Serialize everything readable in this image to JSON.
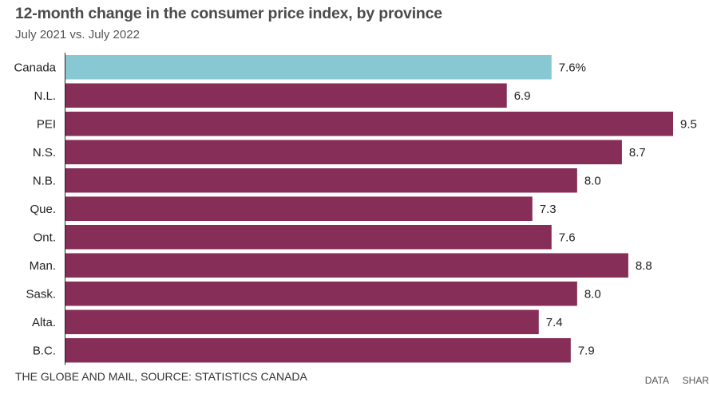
{
  "chart_data": {
    "type": "bar",
    "orientation": "horizontal",
    "title": "12-month change in the consumer price index, by province",
    "subtitle": "July 2021 vs. July 2022",
    "xlabel": "",
    "ylabel": "",
    "xlim": [
      0,
      9.5
    ],
    "grid": false,
    "legend": "none",
    "categories": [
      "Canada",
      "N.L.",
      "PEI",
      "N.S.",
      "N.B.",
      "Que.",
      "Ont.",
      "Man.",
      "Sask.",
      "Alta.",
      "B.C."
    ],
    "values": [
      7.6,
      6.9,
      9.5,
      8.7,
      8.0,
      7.3,
      7.6,
      8.8,
      8.0,
      7.4,
      7.9
    ],
    "value_labels": [
      "7.6%",
      "6.9",
      "9.5",
      "8.7",
      "8.0",
      "7.3",
      "7.6",
      "8.8",
      "8.0",
      "7.4",
      "7.9"
    ],
    "highlight_category": "Canada",
    "colors": {
      "highlight": "#88c8d2",
      "default": "#862d58",
      "axis": "#222222"
    }
  },
  "footer": {
    "source": "THE GLOBE AND MAIL, SOURCE: STATISTICS CANADA",
    "links": [
      "DATA",
      "SHAR"
    ]
  }
}
